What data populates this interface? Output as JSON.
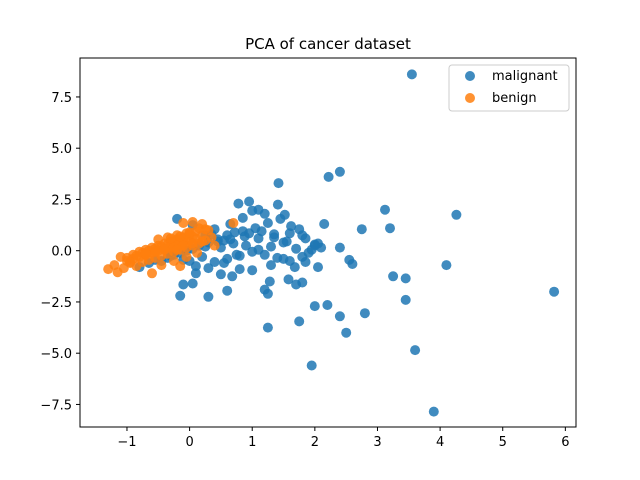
{
  "chart_data": {
    "type": "scatter",
    "title": "PCA of cancer dataset",
    "xlabel": "",
    "ylabel": "",
    "xlim": [
      -1.75,
      6.17
    ],
    "ylim": [
      -8.6,
      9.4
    ],
    "xticks": [
      -1,
      0,
      1,
      2,
      3,
      4,
      5,
      6
    ],
    "xtick_labels": [
      "−1",
      "0",
      "1",
      "2",
      "3",
      "4",
      "5",
      "6"
    ],
    "yticks": [
      -7.5,
      -5.0,
      -2.5,
      0.0,
      2.5,
      5.0,
      7.5
    ],
    "ytick_labels": [
      "−7.5",
      "−5.0",
      "−2.5",
      "0.0",
      "2.5",
      "5.0",
      "7.5"
    ],
    "grid": false,
    "legend_position": "top-right",
    "series": [
      {
        "name": "malignant",
        "color": "#1f77b4",
        "x": [
          3.55,
          2.4,
          2.22,
          1.42,
          0.95,
          0.78,
          1.1,
          1.41,
          3.12,
          4.26,
          3.2,
          2.75,
          2.4,
          2.15,
          1.52,
          1.2,
          1.0,
          0.85,
          0.65,
          0.4,
          0.35,
          0.55,
          0.72,
          0.88,
          1.05,
          1.25,
          1.45,
          1.62,
          1.75,
          1.85,
          2.05,
          2.1,
          1.95,
          1.55,
          1.35,
          1.1,
          0.85,
          0.6,
          0.45,
          0.3,
          0.15,
          0.05,
          -0.05,
          -0.15,
          -0.25,
          -0.35,
          -0.45,
          -0.55,
          -0.65,
          -0.8,
          -0.2,
          0.05,
          0.25,
          0.5,
          0.7,
          0.9,
          1.1,
          1.3,
          1.5,
          1.7,
          1.9,
          2.0,
          1.8,
          1.6,
          1.4,
          1.2,
          1.0,
          0.8,
          0.6,
          0.4,
          0.2,
          0.0,
          -0.1,
          -0.3,
          0.1,
          0.3,
          0.55,
          0.75,
          1.3,
          1.5,
          1.68,
          1.85,
          2.05,
          2.55,
          2.6,
          3.25,
          3.45,
          4.1,
          3.45,
          2.2,
          2.0,
          1.7,
          1.8,
          1.58,
          1.28,
          1.2,
          1.25,
          0.68,
          0.3,
          -0.15,
          -0.1,
          0.05,
          0.6,
          2.8,
          2.4,
          2.5,
          1.25,
          1.75,
          3.6,
          1.95,
          3.9,
          5.82,
          0.25,
          0.45,
          0.65,
          0.95,
          1.15,
          1.35,
          1.6,
          1.8,
          2.0,
          0.1,
          0.5,
          0.8,
          1.0
        ],
        "y": [
          8.6,
          3.85,
          3.6,
          3.3,
          2.4,
          2.3,
          2.0,
          2.25,
          2.0,
          1.75,
          1.1,
          1.05,
          0.15,
          1.3,
          1.75,
          1.8,
          1.95,
          1.6,
          1.3,
          1.05,
          0.8,
          0.5,
          0.9,
          0.7,
          1.1,
          1.35,
          1.55,
          1.2,
          1.05,
          0.6,
          0.35,
          0.15,
          0.05,
          0.45,
          0.8,
          0.6,
          0.95,
          0.75,
          0.55,
          0.4,
          0.25,
          0.1,
          0.0,
          -0.1,
          -0.2,
          -0.35,
          -0.5,
          -0.45,
          -0.6,
          -0.8,
          1.55,
          1.25,
          0.75,
          0.15,
          0.35,
          0.25,
          0.05,
          0.2,
          0.4,
          0.1,
          -0.1,
          0.3,
          -0.3,
          -0.5,
          -0.35,
          -0.2,
          -0.05,
          -0.25,
          -0.4,
          -0.55,
          -0.3,
          -0.5,
          -0.45,
          -0.25,
          -0.75,
          -0.85,
          -0.6,
          -0.2,
          -0.7,
          -0.4,
          -0.8,
          -0.55,
          -0.8,
          -0.45,
          -0.65,
          -1.25,
          -1.35,
          -0.7,
          -2.4,
          -2.65,
          -2.7,
          -1.65,
          -1.55,
          -1.4,
          -1.5,
          -1.9,
          -2.1,
          -1.25,
          -2.25,
          -2.2,
          -1.65,
          -1.6,
          -1.95,
          -3.05,
          -3.2,
          -4.0,
          -3.75,
          -3.45,
          -4.85,
          -5.6,
          -7.85,
          -2.0,
          0.2,
          0.45,
          0.55,
          0.85,
          0.95,
          0.65,
          0.85,
          0.75,
          0.25,
          -1.1,
          -1.15,
          -0.9,
          -0.95
        ]
      },
      {
        "name": "benign",
        "color": "#ff7f0e",
        "x": [
          -1.3,
          -1.15,
          -1.2,
          -1.05,
          -0.95,
          -0.85,
          -0.75,
          -0.9,
          -1.0,
          -1.1,
          -0.8,
          -0.7,
          -0.6,
          -0.5,
          -0.4,
          -0.3,
          -0.2,
          -0.1,
          0.0,
          0.1,
          0.2,
          0.3,
          0.4,
          -0.65,
          -0.55,
          -0.45,
          -0.35,
          -0.25,
          -0.15,
          -0.05,
          0.05,
          0.15,
          0.25,
          -0.75,
          -0.65,
          -0.55,
          -0.45,
          -0.35,
          -0.25,
          -0.15,
          -0.05,
          0.05,
          -0.9,
          -0.8,
          -0.7,
          -0.6,
          -0.5,
          -0.4,
          -0.3,
          -0.2,
          -0.1,
          0.0,
          -1.0,
          -0.85,
          -0.7,
          -0.55,
          -0.4,
          -0.25,
          -0.1,
          0.05,
          0.2,
          -0.5,
          -0.35,
          -0.2,
          -0.05,
          0.1,
          0.25,
          -0.3,
          -0.15,
          0.0,
          0.15,
          -0.1,
          0.05,
          0.2,
          0.7,
          0.35,
          -0.15,
          -0.95,
          -0.6,
          -0.45,
          -0.25,
          -0.05,
          0.12,
          -0.2
        ],
        "y": [
          -0.9,
          -1.05,
          -0.7,
          -0.85,
          -0.6,
          -0.75,
          -0.55,
          -0.4,
          -0.5,
          -0.3,
          -0.3,
          -0.2,
          -0.1,
          0.0,
          0.1,
          0.2,
          0.3,
          0.4,
          0.5,
          0.6,
          0.75,
          1.0,
          0.25,
          -0.45,
          -0.35,
          -0.25,
          -0.15,
          -0.05,
          0.05,
          0.15,
          0.25,
          0.35,
          0.5,
          -0.1,
          0.0,
          0.1,
          0.2,
          0.3,
          0.4,
          0.5,
          0.6,
          0.7,
          -0.2,
          -0.05,
          0.05,
          0.15,
          0.25,
          0.35,
          0.45,
          0.55,
          0.65,
          0.8,
          -0.35,
          -0.25,
          -0.15,
          -0.05,
          0.05,
          0.15,
          0.25,
          0.35,
          0.45,
          0.55,
          0.65,
          0.75,
          0.85,
          0.95,
          1.05,
          0.6,
          0.7,
          0.9,
          1.1,
          1.35,
          1.4,
          1.3,
          1.35,
          0.65,
          -0.75,
          -0.55,
          -1.1,
          -0.7,
          -0.5,
          -0.3,
          -0.1,
          0.05
        ]
      }
    ]
  }
}
